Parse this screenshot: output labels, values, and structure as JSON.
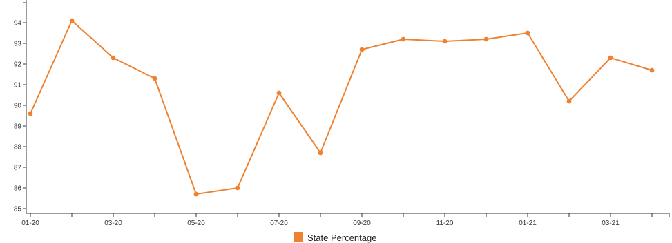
{
  "chart_data": {
    "type": "line",
    "title": "",
    "xlabel": "",
    "ylabel": "",
    "x_tick_labels": [
      "01-20",
      "03-20",
      "05-20",
      "07-20",
      "09-20",
      "11-20",
      "01-21",
      "03-21"
    ],
    "x_tick_count": 16,
    "ylim": [
      84.9,
      95
    ],
    "y_ticks": [
      85,
      86,
      87,
      88,
      89,
      90,
      91,
      92,
      93,
      94
    ],
    "grid": false,
    "legend_position": "bottom-center",
    "series": [
      {
        "name": "State Percentage",
        "color": "#ee8232",
        "x": [
          "01-20",
          "02-20",
          "03-20",
          "04-20",
          "05-20",
          "06-20",
          "07-20",
          "08-20",
          "09-20",
          "10-20",
          "11-20",
          "12-20",
          "01-21",
          "02-21",
          "03-21",
          "04-21"
        ],
        "values": [
          89.6,
          94.1,
          92.3,
          91.3,
          85.7,
          86.0,
          90.6,
          87.7,
          92.7,
          93.2,
          93.1,
          93.2,
          93.5,
          90.2,
          92.3,
          91.7
        ]
      }
    ]
  }
}
